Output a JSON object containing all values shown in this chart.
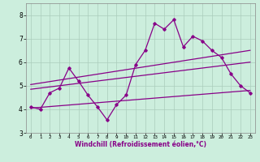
{
  "xlabel": "Windchill (Refroidissement éolien,°C)",
  "xlim": [
    -0.5,
    23.5
  ],
  "ylim": [
    3.0,
    8.5
  ],
  "yticks": [
    3,
    4,
    5,
    6,
    7,
    8
  ],
  "xticks": [
    0,
    1,
    2,
    3,
    4,
    5,
    6,
    7,
    8,
    9,
    10,
    11,
    12,
    13,
    14,
    15,
    16,
    17,
    18,
    19,
    20,
    21,
    22,
    23
  ],
  "bg_color": "#cceedd",
  "line_color": "#880088",
  "grid_color": "#aaccbb",
  "main_x": [
    0,
    1,
    2,
    3,
    4,
    5,
    6,
    7,
    8,
    9,
    10,
    11,
    12,
    13,
    14,
    15,
    16,
    17,
    18,
    19,
    20,
    21,
    22,
    23
  ],
  "main_y": [
    4.1,
    4.0,
    4.7,
    4.9,
    5.75,
    5.2,
    4.6,
    4.1,
    3.55,
    4.2,
    4.6,
    5.9,
    6.5,
    7.65,
    7.4,
    7.8,
    6.65,
    7.1,
    6.9,
    6.5,
    6.2,
    5.5,
    5.0,
    4.7
  ],
  "line1_x": [
    0,
    23
  ],
  "line1_y": [
    4.05,
    4.8
  ],
  "line2_x": [
    0,
    23
  ],
  "line2_y": [
    4.85,
    6.0
  ],
  "line3_x": [
    0,
    23
  ],
  "line3_y": [
    5.05,
    6.5
  ]
}
